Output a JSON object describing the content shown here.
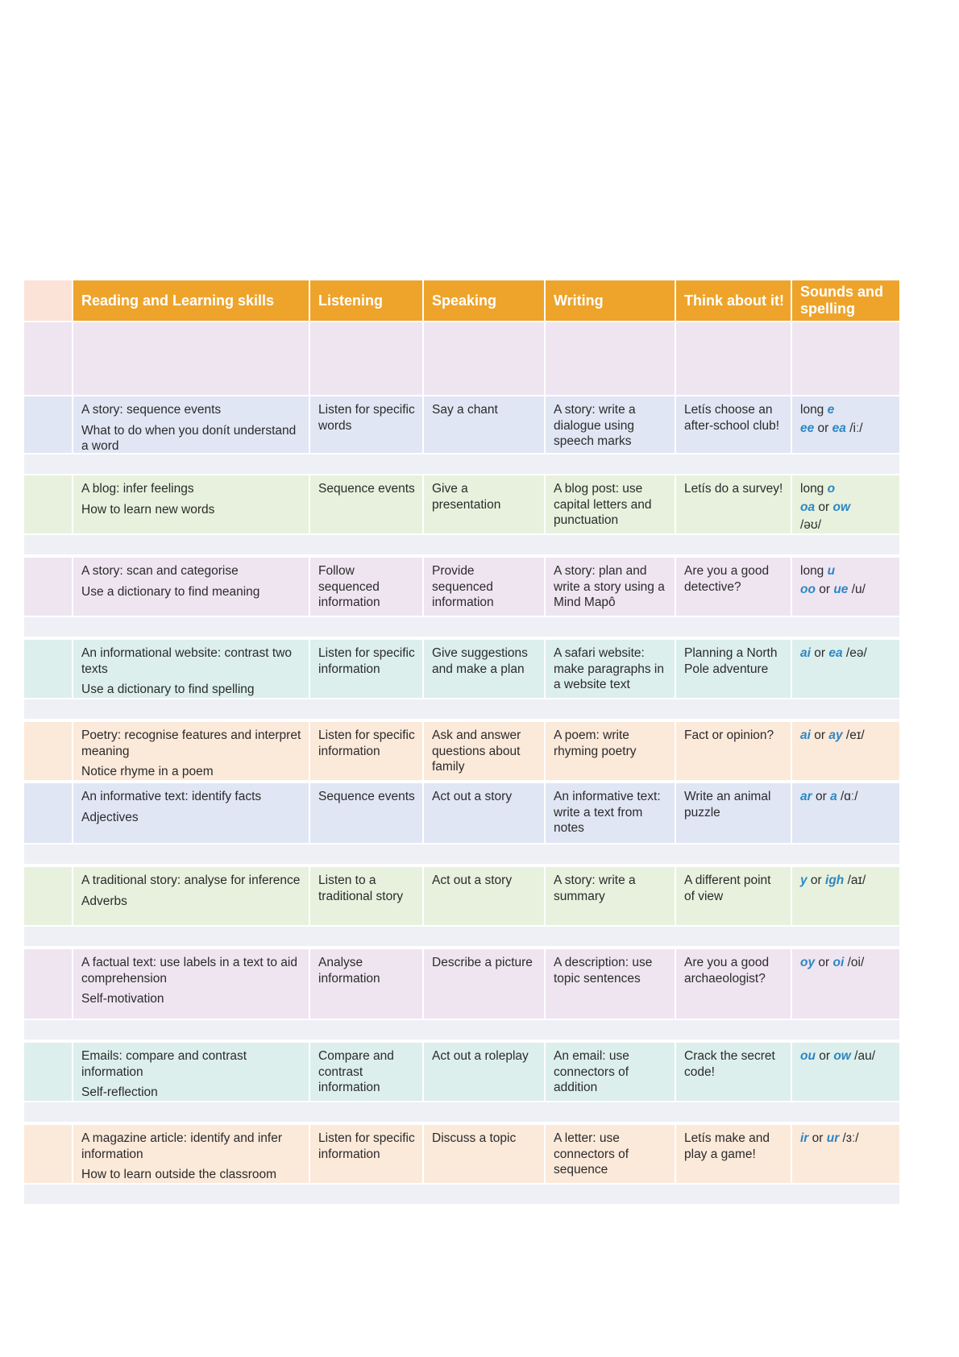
{
  "header": [
    "Reading and Learning skills",
    "Listening",
    "Speaking",
    "Writing",
    "Think about it!",
    "Sounds and spelling"
  ],
  "colors": {
    "header": "#eea42b",
    "header_lead": "#fbe3d8",
    "lilac": "#efe5f1",
    "blue": "#e0e6f3",
    "green": "#e8f1dd",
    "teal": "#dcefec",
    "peach": "#fbe9da",
    "spacer": "#eef0f6",
    "highlight": "#2d86c4"
  },
  "rows": [
    {
      "kind": "blank",
      "color": "#efe5f1"
    },
    {
      "kind": "unit",
      "color": "#e0e6f3",
      "reading": [
        "A story: sequence events",
        "What to do when you donít understand a word"
      ],
      "listening": "Listen for specific words",
      "speaking": "Say a chant",
      "writing": "A story: write a dialogue using speech marks",
      "think": "Letís choose an after-school club!",
      "sounds": [
        [
          {
            "t": "long "
          },
          {
            "t": "e",
            "h": true
          }
        ],
        [
          {
            "t": "ee",
            "h": true
          },
          {
            "t": " or "
          },
          {
            "t": "ea",
            "h": true
          },
          {
            "t": " /iː/"
          }
        ]
      ]
    },
    {
      "kind": "spacer"
    },
    {
      "kind": "unit",
      "color": "#e8f1dd",
      "reading": [
        "A blog: infer feelings",
        "How to learn new words"
      ],
      "listening": "Sequence events",
      "speaking": "Give a presentation",
      "writing": "A blog post: use capital letters and punctuation",
      "think": "Letís do a survey!",
      "sounds": [
        [
          {
            "t": "long "
          },
          {
            "t": "o",
            "h": true
          }
        ],
        [
          {
            "t": "oa",
            "h": true
          },
          {
            "t": " or "
          },
          {
            "t": "ow",
            "h": true
          }
        ],
        [
          {
            "t": "/əʊ/"
          }
        ]
      ]
    },
    {
      "kind": "spacer"
    },
    {
      "kind": "unit",
      "color": "#efe5f1",
      "reading": [
        "A story: scan and categorise",
        "Use a dictionary to find meaning"
      ],
      "listening": "Follow sequenced information",
      "speaking": "Provide sequenced information",
      "writing": "A story: plan and write a story using a Mind Mapô",
      "think": "Are you a good detective?",
      "sounds": [
        [
          {
            "t": "long "
          },
          {
            "t": "u",
            "h": true
          }
        ],
        [
          {
            "t": "oo",
            "h": true
          },
          {
            "t": " or "
          },
          {
            "t": "ue",
            "h": true
          },
          {
            "t": " /u/"
          }
        ]
      ]
    },
    {
      "kind": "spacer"
    },
    {
      "kind": "unit",
      "color": "#dcefec",
      "reading": [
        "An informational website: contrast two texts",
        "Use a dictionary to find spelling"
      ],
      "listening": "Listen for specific information",
      "speaking": "Give suggestions and make a plan",
      "writing": "A safari website: make paragraphs in a website text",
      "think": "Planning a North Pole adventure",
      "sounds": [
        [
          {
            "t": "ai",
            "h": true
          },
          {
            "t": " or "
          },
          {
            "t": "ea",
            "h": true
          },
          {
            "t": " /eə/"
          }
        ]
      ]
    },
    {
      "kind": "spacer"
    },
    {
      "kind": "unit",
      "color": "#fbe9da",
      "reading": [
        "Poetry: recognise features and interpret meaning",
        "Notice rhyme in a poem"
      ],
      "listening": "Listen for specific information",
      "speaking": "Ask and answer questions about family",
      "writing": "A poem: write rhyming poetry",
      "think": "Fact or opinion?",
      "sounds": [
        [
          {
            "t": "ai",
            "h": true
          },
          {
            "t": " or "
          },
          {
            "t": "ay",
            "h": true
          },
          {
            "t": " /eɪ/"
          }
        ]
      ]
    },
    {
      "kind": "unit",
      "color": "#e0e6f3",
      "reading": [
        "An informative text: identify facts",
        "Adjectives"
      ],
      "listening": "Sequence events",
      "speaking": "Act out a story",
      "writing": "An informative text: write a text from notes",
      "think": "Write an animal puzzle",
      "sounds": [
        [
          {
            "t": "ar",
            "h": true
          },
          {
            "t": " or "
          },
          {
            "t": "a",
            "h": true
          },
          {
            "t": " /ɑː/"
          }
        ]
      ]
    },
    {
      "kind": "spacer"
    },
    {
      "kind": "unit",
      "color": "#e8f1dd",
      "reading": [
        "A traditional story: analyse for inference",
        "Adverbs"
      ],
      "listening": "Listen to a traditional story",
      "speaking": "Act out a story",
      "writing": "A story: write a summary",
      "think": "A different point of view",
      "sounds": [
        [
          {
            "t": "y",
            "h": true
          },
          {
            "t": " or "
          },
          {
            "t": "igh",
            "h": true
          },
          {
            "t": " /aɪ/"
          }
        ]
      ]
    },
    {
      "kind": "spacer"
    },
    {
      "kind": "unit",
      "color": "#efe5f1",
      "reading": [
        "A factual text: use labels in a text to aid comprehension",
        "Self-motivation"
      ],
      "listening": "Analyse information",
      "speaking": "Describe a picture",
      "writing": "A description: use topic sentences",
      "think": "Are you a good archaeologist?",
      "sounds": [
        [
          {
            "t": "oy",
            "h": true
          },
          {
            "t": " or "
          },
          {
            "t": "oi",
            "h": true
          },
          {
            "t": " /oi/"
          }
        ]
      ]
    },
    {
      "kind": "spacer"
    },
    {
      "kind": "unit",
      "color": "#dcefec",
      "reading": [
        "Emails: compare and contrast information",
        "Self-reflection"
      ],
      "listening": "Compare and contrast information",
      "speaking": "Act out a roleplay",
      "writing": "An email: use connectors of addition",
      "think": "Crack the secret code!",
      "sounds": [
        [
          {
            "t": "ou",
            "h": true
          },
          {
            "t": " or "
          },
          {
            "t": "ow",
            "h": true
          },
          {
            "t": " /au/"
          }
        ]
      ]
    },
    {
      "kind": "spacer"
    },
    {
      "kind": "unit",
      "color": "#fbe9da",
      "reading": [
        "A magazine article: identify and infer information",
        "How to learn outside the classroom"
      ],
      "listening": "Listen for specific information",
      "speaking": "Discuss a topic",
      "writing": "A letter: use connectors of sequence",
      "think": "Letís make and play a game!",
      "sounds": [
        [
          {
            "t": "ir",
            "h": true
          },
          {
            "t": " or "
          },
          {
            "t": "ur",
            "h": true
          },
          {
            "t": " /ɜː/"
          }
        ]
      ]
    },
    {
      "kind": "spacer"
    }
  ]
}
